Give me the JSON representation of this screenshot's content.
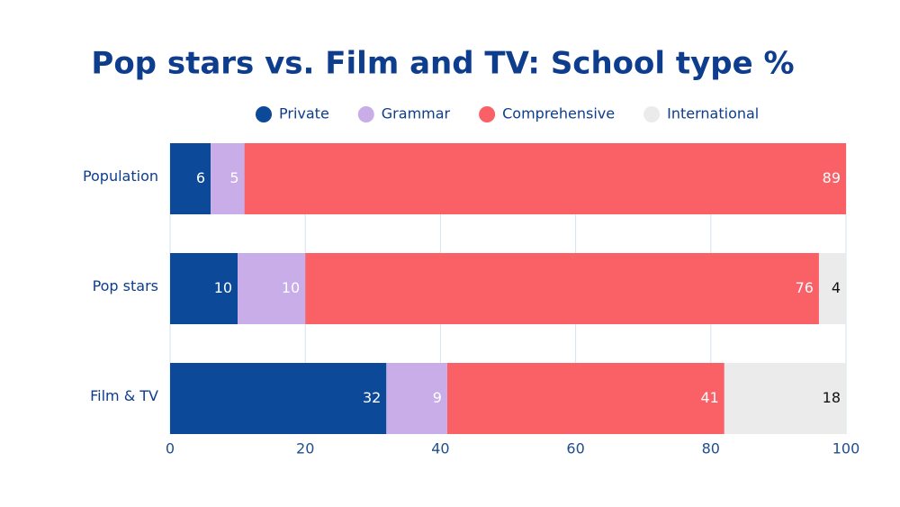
{
  "chart_data": {
    "type": "stacked-bar-horizontal",
    "title": "Pop stars vs. Film and TV: School type %",
    "categories": [
      "Population",
      "Pop stars",
      "Film & TV"
    ],
    "series": [
      {
        "name": "Private",
        "color": "#0c4a99",
        "values": [
          6,
          10,
          32
        ]
      },
      {
        "name": "Grammar",
        "color": "#c9ade8",
        "values": [
          5,
          10,
          9
        ]
      },
      {
        "name": "Comprehensive",
        "color": "#f96167",
        "values": [
          89,
          76,
          41
        ]
      },
      {
        "name": "International",
        "color": "#ebebeb",
        "values": [
          null,
          4,
          18
        ]
      }
    ],
    "xlim": [
      0,
      100
    ],
    "xticks": [
      0,
      20,
      40,
      60,
      80,
      100
    ],
    "grid": true,
    "legend": "top"
  }
}
